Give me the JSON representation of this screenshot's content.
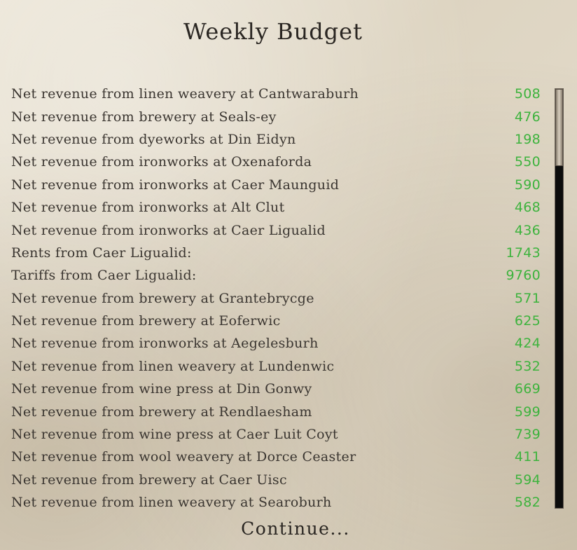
{
  "title": "Weekly Budget",
  "rows": [
    {
      "label": "Net revenue from linen weavery at Cantwaraburh",
      "amount": "508"
    },
    {
      "label": "Net revenue from brewery at Seals-ey",
      "amount": "476"
    },
    {
      "label": "Net revenue from dyeworks at Din Eidyn",
      "amount": "198"
    },
    {
      "label": "Net revenue from ironworks at Oxenaforda",
      "amount": "550"
    },
    {
      "label": "Net revenue from ironworks at Caer Maunguid",
      "amount": "590"
    },
    {
      "label": "Net revenue from ironworks at Alt Clut",
      "amount": "468"
    },
    {
      "label": "Net revenue from ironworks at Caer Ligualid",
      "amount": "436"
    },
    {
      "label": "Rents from Caer Ligualid:",
      "amount": "1743"
    },
    {
      "label": "Tariffs from Caer Ligualid:",
      "amount": "9760"
    },
    {
      "label": "Net revenue from brewery at Grantebrycge",
      "amount": "571"
    },
    {
      "label": "Net revenue from brewery at Eoferwic",
      "amount": "625"
    },
    {
      "label": "Net revenue from ironworks at Aegelesburh",
      "amount": "424"
    },
    {
      "label": "Net revenue from linen weavery at Lundenwic",
      "amount": "532"
    },
    {
      "label": "Net revenue from wine press at Din Gonwy",
      "amount": "669"
    },
    {
      "label": "Net revenue from brewery at Rendlaesham",
      "amount": "599"
    },
    {
      "label": "Net revenue from wine press at Caer Luit Coyt",
      "amount": "739"
    },
    {
      "label": "Net revenue from wool weavery at Dorce Ceaster",
      "amount": "411"
    },
    {
      "label": "Net revenue from brewery at Caer Uisc",
      "amount": "594"
    },
    {
      "label": "Net revenue from linen weavery at Searoburh",
      "amount": "582"
    }
  ],
  "continue_label": "Continue...",
  "colors": {
    "amount": "#3db33d",
    "text": "#3a3530"
  }
}
